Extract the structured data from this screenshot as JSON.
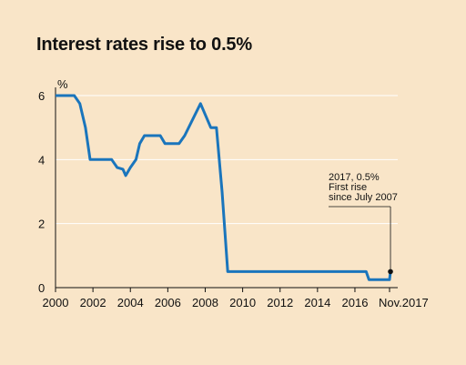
{
  "title": "Interest rates rise to 0.5%",
  "colors": {
    "background": "#f9e5c8",
    "line": "#1a75bc",
    "grid": "#ffffff",
    "axis": "#111111"
  },
  "chart_data": {
    "type": "line",
    "title": "Interest rates rise to 0.5%",
    "ylabel": "%",
    "xlabel": "",
    "xlim": [
      2000,
      2017.9
    ],
    "ylim": [
      0,
      6.2
    ],
    "grid": true,
    "x_ticks": [
      {
        "value": 2000,
        "label": "2000"
      },
      {
        "value": 2002,
        "label": "2002"
      },
      {
        "value": 2004,
        "label": "2004"
      },
      {
        "value": 2006,
        "label": "2006"
      },
      {
        "value": 2008,
        "label": "2008"
      },
      {
        "value": 2010,
        "label": "2010"
      },
      {
        "value": 2012,
        "label": "2012"
      },
      {
        "value": 2014,
        "label": "2014"
      },
      {
        "value": 2016,
        "label": "2016"
      },
      {
        "value": 2017.85,
        "label": "Nov.2017"
      }
    ],
    "y_ticks": [
      {
        "value": 0,
        "label": "0"
      },
      {
        "value": 2,
        "label": "2"
      },
      {
        "value": 4,
        "label": "4"
      },
      {
        "value": 6,
        "label": "6"
      }
    ],
    "series": [
      {
        "points": [
          [
            2000.0,
            6.0
          ],
          [
            2001.0,
            6.0
          ],
          [
            2001.3,
            5.75
          ],
          [
            2001.6,
            5.0
          ],
          [
            2001.85,
            4.0
          ],
          [
            2003.0,
            4.0
          ],
          [
            2003.3,
            3.75
          ],
          [
            2003.6,
            3.7
          ],
          [
            2003.75,
            3.5
          ],
          [
            2004.0,
            3.75
          ],
          [
            2004.3,
            4.0
          ],
          [
            2004.5,
            4.5
          ],
          [
            2004.75,
            4.75
          ],
          [
            2005.6,
            4.75
          ],
          [
            2005.85,
            4.5
          ],
          [
            2006.6,
            4.5
          ],
          [
            2006.9,
            4.75
          ],
          [
            2007.75,
            5.75
          ],
          [
            2008.3,
            5.0
          ],
          [
            2008.6,
            5.0
          ],
          [
            2008.9,
            3.0
          ],
          [
            2009.2,
            0.5
          ],
          [
            2016.6,
            0.5
          ],
          [
            2016.75,
            0.25
          ],
          [
            2017.85,
            0.25
          ],
          [
            2017.9,
            0.5
          ]
        ]
      }
    ],
    "annotation": {
      "lines": [
        "2017, 0.5%",
        "First rise",
        "since July 2007"
      ],
      "x": 2017.9,
      "y": 0.5
    }
  }
}
